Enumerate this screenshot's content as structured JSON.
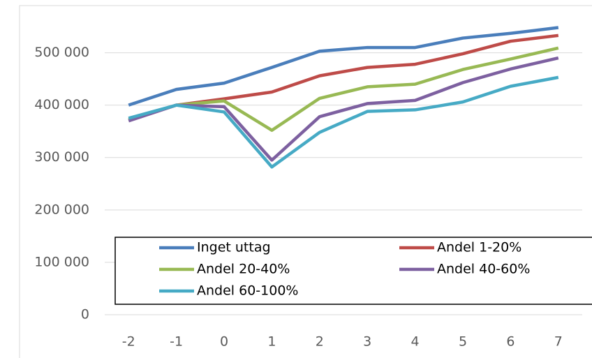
{
  "chart_data": {
    "type": "line",
    "x": [
      -2,
      -1,
      0,
      1,
      2,
      3,
      4,
      5,
      6,
      7
    ],
    "xlim": [
      -2.5,
      7.5
    ],
    "xticks": [
      -2,
      -1,
      0,
      1,
      2,
      3,
      4,
      5,
      6,
      7
    ],
    "ylim": [
      0,
      590000
    ],
    "yticks": [
      0,
      {
        "value": 100000,
        "label": "100 000"
      },
      {
        "value": 200000,
        "label": "200 000"
      },
      {
        "value": 300000,
        "label": "300 000"
      },
      {
        "value": 400000,
        "label": "400 000"
      },
      {
        "value": 500000,
        "label": "500 000"
      }
    ],
    "grid": true,
    "series": [
      {
        "name": "Inget uttag",
        "color": "#4a7ebb",
        "values": [
          400000,
          430000,
          442000,
          472000,
          503000,
          510000,
          510000,
          528000,
          537000,
          548000
        ]
      },
      {
        "name": "Andel 1-20%",
        "color": "#be4b48",
        "values": [
          372000,
          400000,
          412000,
          425000,
          456000,
          472000,
          478000,
          498000,
          522000,
          533000
        ]
      },
      {
        "name": "Andel 20-40%",
        "color": "#98b954",
        "values": [
          372000,
          400000,
          408000,
          352000,
          413000,
          435000,
          440000,
          468000,
          488000,
          509000
        ]
      },
      {
        "name": "Andel 40-60%",
        "color": "#7d60a0",
        "values": [
          370000,
          400000,
          397000,
          295000,
          378000,
          403000,
          409000,
          443000,
          469000,
          490000
        ]
      },
      {
        "name": "Andel 60-100%",
        "color": "#46aac5",
        "values": [
          375000,
          400000,
          387000,
          282000,
          348000,
          388000,
          391000,
          406000,
          436000,
          453000
        ]
      }
    ]
  }
}
